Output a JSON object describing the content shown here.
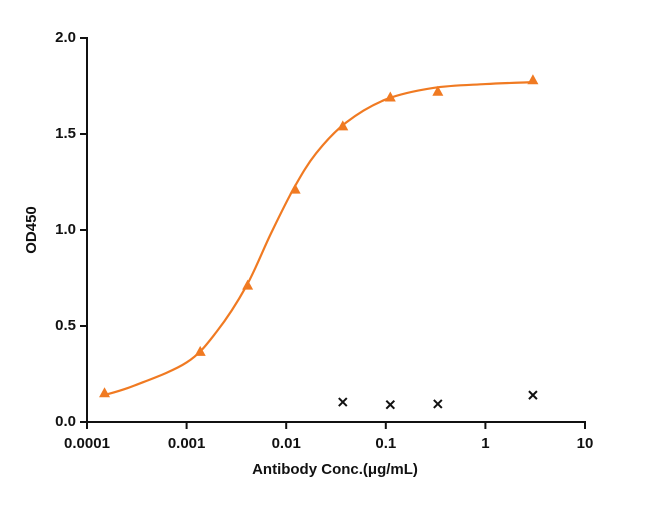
{
  "chart_data": {
    "type": "scatter",
    "xlabel": "Antibody Conc.(μg/mL)",
    "ylabel": "OD450",
    "xscale": "log",
    "xlim": [
      0.0001,
      10
    ],
    "xticks": [
      0.0001,
      0.001,
      0.01,
      0.1,
      1,
      10
    ],
    "ylim": [
      0,
      2
    ],
    "yticks": [
      {
        "value": 0,
        "label": "0.0"
      },
      0.5,
      {
        "value": 1,
        "label": "1.0"
      },
      1.5,
      {
        "value": 2,
        "label": "2.0"
      }
    ],
    "grid": false,
    "series": [
      {
        "color": "#f07a22",
        "marker": "triangle",
        "x": [
          0.00015,
          0.00137,
          0.0041,
          0.0123,
          0.037,
          0.111,
          0.333,
          3
        ],
        "values": [
          0.15,
          0.365,
          0.71,
          1.21,
          1.54,
          1.69,
          1.72,
          1.78
        ]
      },
      {
        "color": "#111111",
        "marker": "x",
        "x": [
          0.037,
          0.111,
          0.333,
          3
        ],
        "values": [
          0.104,
          0.09,
          0.094,
          0.14
        ]
      }
    ],
    "curve": {
      "color": "#f07a22",
      "x": [
        0.00015,
        0.0003,
        0.001,
        0.002,
        0.004,
        0.007,
        0.012,
        0.02,
        0.04,
        0.1,
        0.3,
        1,
        3
      ],
      "values": [
        0.14,
        0.19,
        0.31,
        0.47,
        0.71,
        0.98,
        1.22,
        1.4,
        1.56,
        1.68,
        1.74,
        1.76,
        1.77
      ]
    }
  }
}
